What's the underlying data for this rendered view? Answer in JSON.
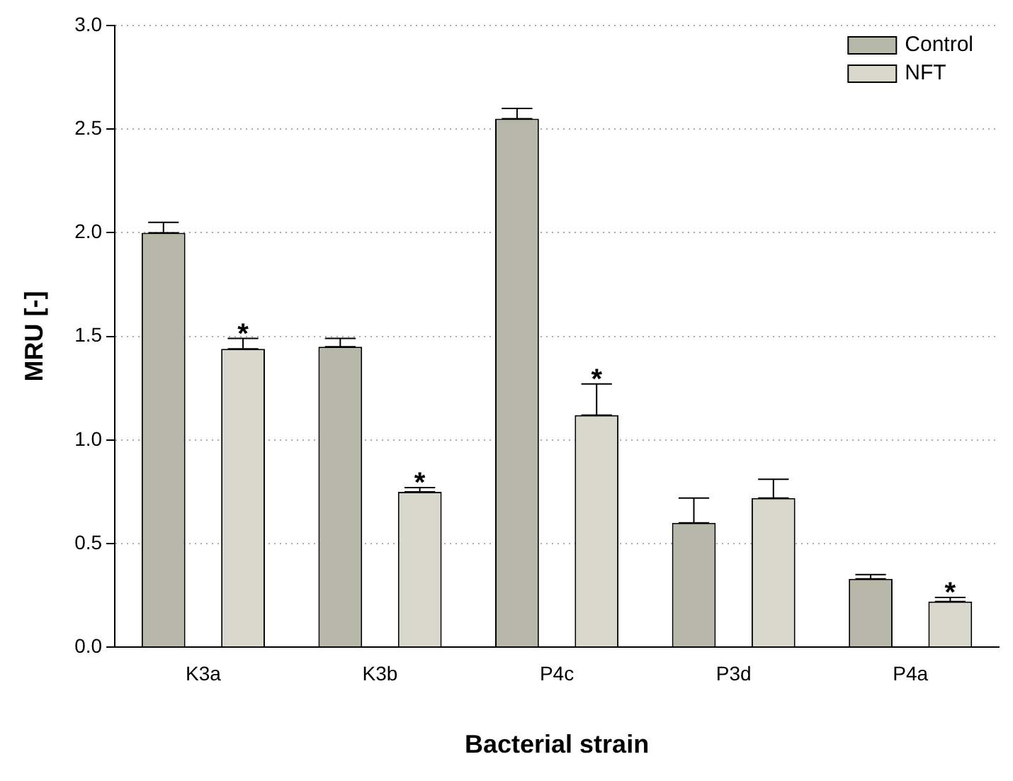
{
  "chart_data": {
    "type": "bar",
    "xlabel": "Bacterial strain",
    "ylabel": "MRU [-]",
    "categories": [
      "K3a",
      "K3b",
      "P4c",
      "P3d",
      "P4a"
    ],
    "series": [
      {
        "name": "Control",
        "color": "#b8b8aa",
        "values": [
          2.0,
          1.45,
          2.55,
          0.6,
          0.33
        ],
        "errors": [
          [
            2.0,
            2.05
          ],
          [
            1.45,
            1.49
          ],
          [
            2.55,
            2.6
          ],
          [
            0.6,
            0.72
          ],
          [
            0.33,
            0.35
          ]
        ]
      },
      {
        "name": "NFT",
        "color": "#d8d8cc",
        "values": [
          1.44,
          0.75,
          1.12,
          0.72,
          0.22
        ],
        "errors": [
          [
            1.44,
            1.49
          ],
          [
            0.75,
            0.77
          ],
          [
            1.12,
            1.27
          ],
          [
            0.72,
            0.81
          ],
          [
            0.22,
            0.24
          ]
        ],
        "value_labels": [
          "*",
          "*",
          "*",
          null,
          "*"
        ]
      }
    ],
    "ylim": [
      0,
      3
    ],
    "yticks": [
      {
        "value": 0,
        "label": "0.0"
      },
      {
        "value": 0.5,
        "label": "0.5"
      },
      {
        "value": 1,
        "label": "1.0"
      },
      {
        "value": 1.5,
        "label": "1.5"
      },
      {
        "value": 2,
        "label": "2.0"
      },
      {
        "value": 2.5,
        "label": "2.5"
      },
      {
        "value": 3,
        "label": "3.0"
      }
    ],
    "grid": "y",
    "legend": "top right"
  }
}
